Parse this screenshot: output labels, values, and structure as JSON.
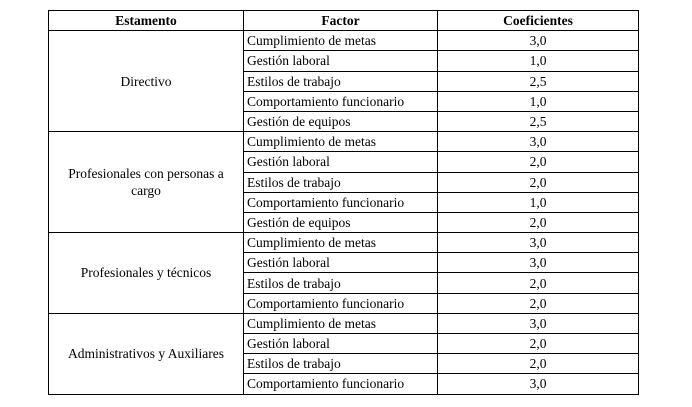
{
  "table": {
    "header": [
      "Estamento",
      "Factor",
      "Coeficientes"
    ],
    "groups": [
      {
        "estamento": "Directivo",
        "rows": [
          [
            "Cumplimiento de metas",
            "3,0"
          ],
          [
            "Gestión laboral",
            "1,0"
          ],
          [
            "Estilos de trabajo",
            "2,5"
          ],
          [
            "Comportamiento funcionario",
            "1,0"
          ],
          [
            "Gestión de equipos",
            "2,5"
          ]
        ]
      },
      {
        "estamento": "Profesionales con personas a cargo",
        "rows": [
          [
            "Cumplimiento de metas",
            "3,0"
          ],
          [
            "Gestión laboral",
            "2,0"
          ],
          [
            "Estilos de trabajo",
            "2,0"
          ],
          [
            "Comportamiento funcionario",
            "1,0"
          ],
          [
            "Gestión de equipos",
            "2,0"
          ]
        ]
      },
      {
        "estamento": "Profesionales y técnicos",
        "rows": [
          [
            "Cumplimiento de metas",
            "3,0"
          ],
          [
            "Gestión laboral",
            "3,0"
          ],
          [
            "Estilos de trabajo",
            "2,0"
          ],
          [
            "Comportamiento funcionario",
            "2,0"
          ]
        ]
      },
      {
        "estamento": "Administrativos y Auxiliares",
        "rows": [
          [
            "Cumplimiento de metas",
            "3,0"
          ],
          [
            "Gestión laboral",
            "2,0"
          ],
          [
            "Estilos de trabajo",
            "2,0"
          ],
          [
            "Comportamiento funcionario",
            "3,0"
          ]
        ]
      }
    ]
  }
}
